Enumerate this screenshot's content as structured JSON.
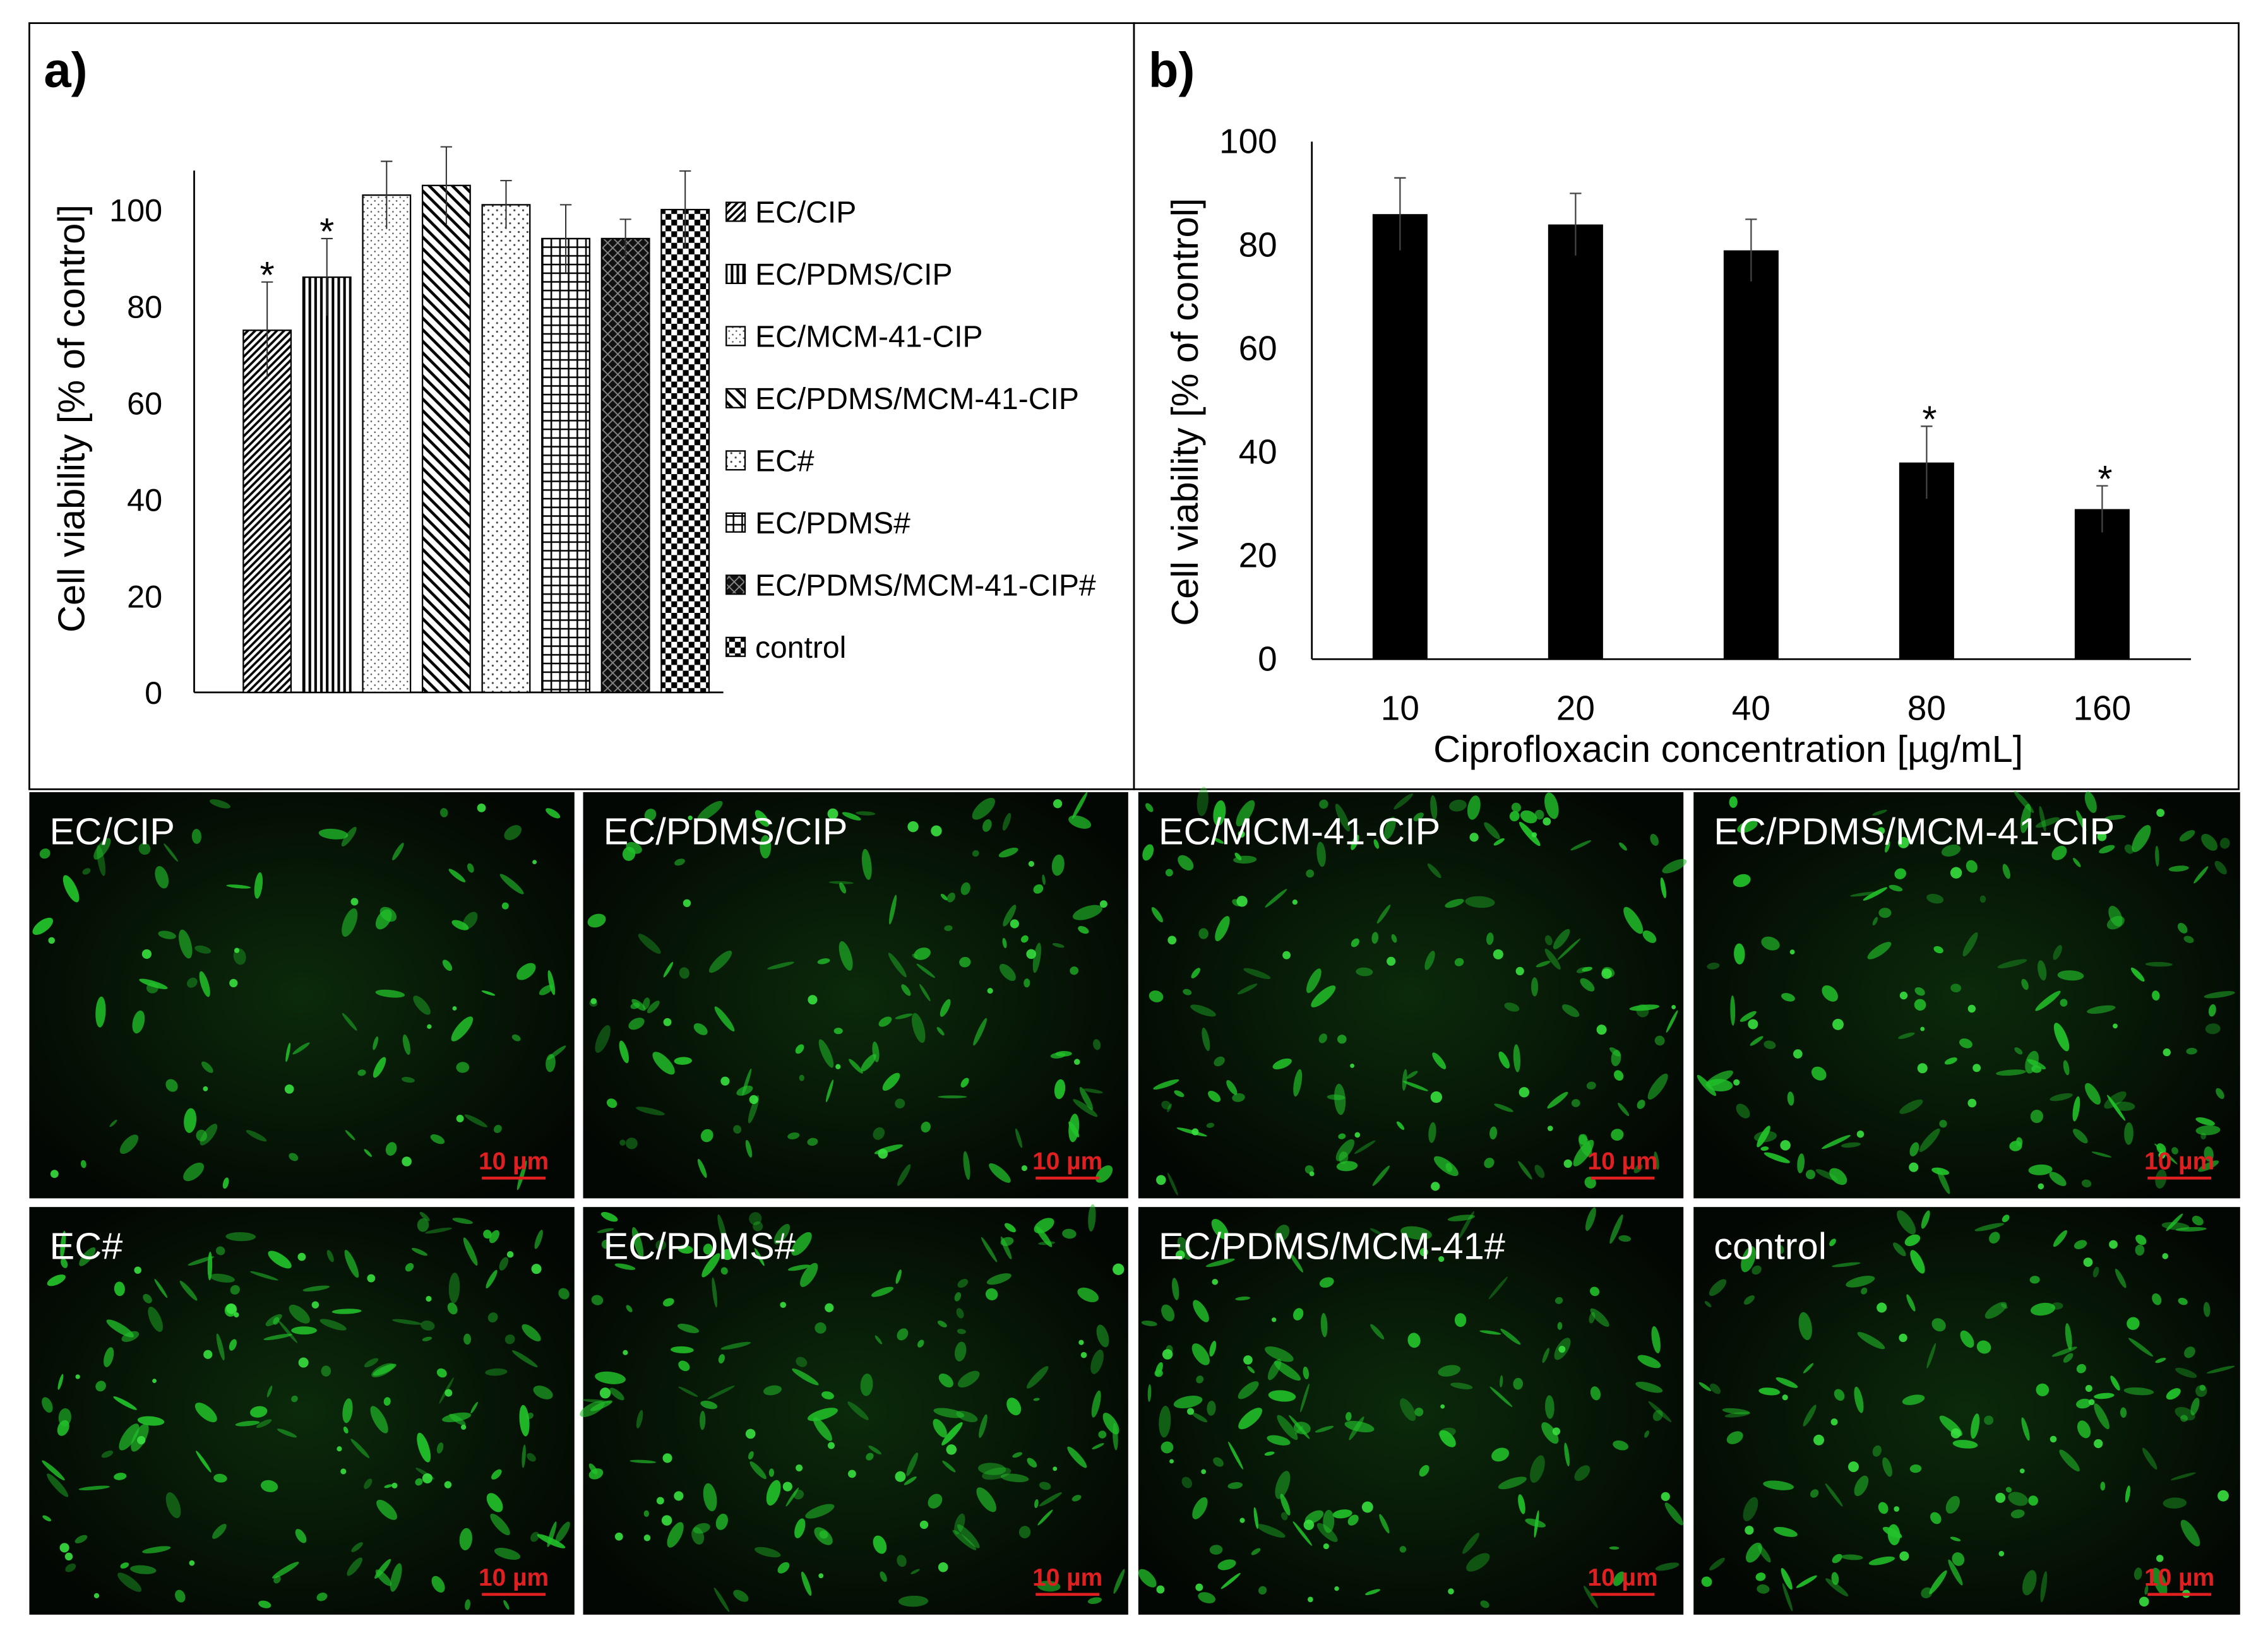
{
  "panel_a": {
    "label": "a)",
    "legend": [
      "EC/CIP",
      "EC/PDMS/CIP",
      "EC/MCM-41-CIP",
      "EC/PDMS/MCM-41-CIP",
      "EC#",
      "EC/PDMS#",
      "EC/PDMS/MCM-41-CIP#",
      "control"
    ]
  },
  "panel_b": {
    "label": "b)"
  },
  "micrographs": [
    {
      "label": "EC/CIP",
      "scale": "10 µm"
    },
    {
      "label": "EC/PDMS/CIP",
      "scale": "10 µm"
    },
    {
      "label": "EC/MCM-41-CIP",
      "scale": "10 µm"
    },
    {
      "label": "EC/PDMS/MCM-41-CIP",
      "scale": "10 µm"
    },
    {
      "label": "EC#",
      "scale": "10 µm"
    },
    {
      "label": "EC/PDMS#",
      "scale": "10 µm"
    },
    {
      "label": "EC/PDMS/MCM-41#",
      "scale": "10 µm"
    },
    {
      "label": "control",
      "scale": "10 µm"
    }
  ],
  "colors": {
    "fluorescence": "#22c22a",
    "background": "#050a05",
    "scale_bar": "#e02020"
  },
  "chart_data": [
    {
      "type": "bar",
      "categories": [
        "EC/CIP",
        "EC/PDMS/CIP",
        "EC/MCM-41-CIP",
        "EC/PDMS/MCM-41-CIP",
        "EC#",
        "EC/PDMS#",
        "EC/PDMS/MCM-41-CIP#",
        "control"
      ],
      "values": [
        75,
        86,
        103,
        105,
        101,
        94,
        94,
        100
      ],
      "errors": [
        10,
        8,
        7,
        8,
        5,
        7,
        4,
        8
      ],
      "significance": [
        "*",
        "*",
        "",
        "",
        "",
        "",
        "",
        ""
      ],
      "ylabel": "Cell viability [% of control]",
      "xlabel": "",
      "yticks": [
        0,
        20,
        40,
        60,
        80,
        100
      ],
      "ylim": [
        0,
        108
      ],
      "legend_position": "right",
      "grid": false
    },
    {
      "type": "bar",
      "categories": [
        "10",
        "20",
        "40",
        "80",
        "160"
      ],
      "values": [
        86,
        84,
        79,
        38,
        29
      ],
      "errors": [
        7,
        6,
        6,
        7,
        4.5
      ],
      "significance": [
        "",
        "",
        "",
        "*",
        "*"
      ],
      "ylabel": "Cell viability [% of control]",
      "xlabel": "Ciprofloxacin concentration [µg/mL]",
      "yticks": [
        0,
        20,
        40,
        60,
        80,
        100
      ],
      "ylim": [
        0,
        100
      ],
      "legend_position": "none",
      "grid": false
    }
  ]
}
